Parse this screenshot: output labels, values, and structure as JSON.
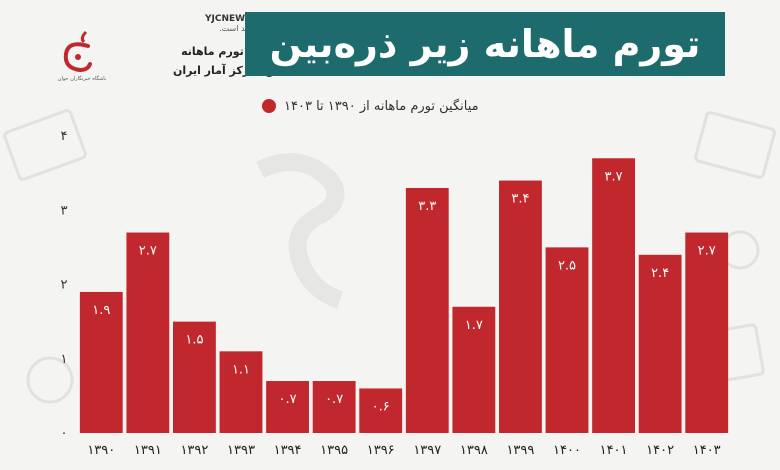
{
  "header": {
    "channel": "YJCNEWSCHANNEL",
    "units_note": "اعداد به درصد است.",
    "subtitle_line1": "میانگین تورم ماهانه",
    "subtitle_line2": "منبع: مرکز آمار ایران",
    "logo_caption": "باشگاه خبرنگاران جوان",
    "title": "تورم ماهانه زیر ذره‌بین"
  },
  "colors": {
    "bar": "#c0282d",
    "title_bg": "#1d6b6c"
  },
  "chart_data": {
    "type": "bar",
    "categories": [
      "۱۳۹۰",
      "۱۳۹۱",
      "۱۳۹۲",
      "۱۳۹۳",
      "۱۳۹۴",
      "۱۳۹۵",
      "۱۳۹۶",
      "۱۳۹۷",
      "۱۳۹۸",
      "۱۳۹۹",
      "۱۴۰۰",
      "۱۴۰۱",
      "۱۴۰۲",
      "۱۴۰۳"
    ],
    "values": [
      1.9,
      2.7,
      1.5,
      1.1,
      0.7,
      0.7,
      0.6,
      3.3,
      1.7,
      3.4,
      2.5,
      3.7,
      2.4,
      2.7
    ],
    "value_labels": [
      "۱.۹",
      "۲.۷",
      "۱.۵",
      "۱.۱",
      "۰.۷",
      "۰.۷",
      "۰.۶",
      "۳.۳",
      "۱.۷",
      "۳.۴",
      "۲.۵",
      "۳.۷",
      "۲.۴",
      "۲.۷"
    ],
    "legend": "میانگین تورم ماهانه از ۱۳۹۰ تا ۱۴۰۳",
    "yticks": [
      0,
      1,
      2,
      3,
      4
    ],
    "ytick_labels": [
      "۰",
      "۱",
      "۲",
      "۳",
      "۴"
    ],
    "ylim": [
      0,
      4
    ],
    "grid": false
  }
}
